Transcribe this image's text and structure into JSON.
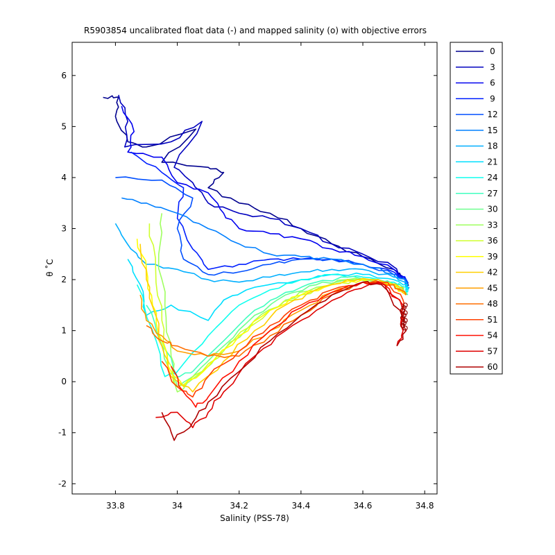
{
  "chart_data": {
    "type": "line",
    "title": "R5903854 uncalibrated float data (-) and mapped salinity (o) with objective errors",
    "xlabel": "Salinity (PSS-78)",
    "ylabel": "θ ˚C",
    "xlim": [
      33.66,
      34.84
    ],
    "ylim": [
      -2.2,
      6.65
    ],
    "xticks": [
      33.8,
      34,
      34.2,
      34.4,
      34.6,
      34.8
    ],
    "yticks": [
      -2,
      -1,
      0,
      1,
      2,
      3,
      4,
      5,
      6
    ],
    "grid": false,
    "legend_position": "outside-right",
    "series": [
      {
        "name": "0",
        "color": "#00008F",
        "points": [
          [
            33.76,
            5.57
          ],
          [
            33.81,
            5.58
          ],
          [
            33.8,
            5.2
          ],
          [
            33.84,
            4.7
          ],
          [
            33.9,
            4.6
          ],
          [
            34.06,
            4.95
          ],
          [
            33.95,
            4.3
          ],
          [
            34.1,
            4.2
          ],
          [
            34.15,
            4.1
          ],
          [
            34.1,
            3.8
          ],
          [
            34.2,
            3.5
          ],
          [
            34.3,
            3.3
          ],
          [
            34.4,
            3.0
          ],
          [
            34.5,
            2.7
          ],
          [
            34.6,
            2.45
          ],
          [
            34.7,
            2.2
          ],
          [
            34.74,
            2.0
          ],
          [
            34.745,
            1.8
          ]
        ]
      },
      {
        "name": "3",
        "color": "#0000BF",
        "points": [
          [
            33.81,
            5.62
          ],
          [
            33.84,
            5.1
          ],
          [
            33.83,
            4.6
          ],
          [
            33.98,
            4.7
          ],
          [
            34.08,
            5.1
          ],
          [
            33.99,
            4.2
          ],
          [
            34.05,
            3.9
          ],
          [
            34.1,
            3.5
          ],
          [
            34.2,
            3.3
          ],
          [
            34.3,
            3.2
          ],
          [
            34.4,
            3.0
          ],
          [
            34.5,
            2.7
          ],
          [
            34.6,
            2.5
          ],
          [
            34.7,
            2.25
          ],
          [
            34.74,
            2.0
          ],
          [
            34.745,
            1.8
          ]
        ]
      },
      {
        "name": "6",
        "color": "#0000EF",
        "points": [
          [
            33.82,
            5.4
          ],
          [
            33.86,
            4.9
          ],
          [
            33.84,
            4.5
          ],
          [
            33.95,
            4.4
          ],
          [
            34.0,
            3.9
          ],
          [
            34.1,
            3.7
          ],
          [
            34.15,
            3.3
          ],
          [
            34.2,
            3.0
          ],
          [
            34.3,
            2.9
          ],
          [
            34.4,
            2.8
          ],
          [
            34.5,
            2.6
          ],
          [
            34.6,
            2.45
          ],
          [
            34.7,
            2.2
          ],
          [
            34.74,
            2.0
          ],
          [
            34.745,
            1.8
          ]
        ]
      },
      {
        "name": "9",
        "color": "#001FFF",
        "points": [
          [
            33.85,
            4.5
          ],
          [
            33.95,
            4.1
          ],
          [
            34.02,
            3.8
          ],
          [
            34.0,
            3.2
          ],
          [
            34.05,
            2.6
          ],
          [
            34.1,
            2.2
          ],
          [
            34.2,
            2.3
          ],
          [
            34.3,
            2.4
          ],
          [
            34.4,
            2.4
          ],
          [
            34.5,
            2.4
          ],
          [
            34.6,
            2.3
          ],
          [
            34.7,
            2.15
          ],
          [
            34.74,
            2.0
          ],
          [
            34.745,
            1.8
          ]
        ]
      },
      {
        "name": "12",
        "color": "#004FFF",
        "points": [
          [
            33.8,
            4.0
          ],
          [
            33.95,
            3.95
          ],
          [
            34.05,
            3.6
          ],
          [
            34.0,
            3.0
          ],
          [
            34.02,
            2.4
          ],
          [
            34.1,
            2.1
          ],
          [
            34.2,
            2.15
          ],
          [
            34.3,
            2.3
          ],
          [
            34.4,
            2.4
          ],
          [
            34.5,
            2.4
          ],
          [
            34.6,
            2.3
          ],
          [
            34.7,
            2.1
          ],
          [
            34.74,
            2.0
          ],
          [
            34.745,
            1.8
          ]
        ]
      },
      {
        "name": "15",
        "color": "#007FFF",
        "points": [
          [
            33.82,
            3.6
          ],
          [
            33.9,
            3.5
          ],
          [
            34.0,
            3.3
          ],
          [
            34.1,
            3.0
          ],
          [
            34.2,
            2.7
          ],
          [
            34.3,
            2.5
          ],
          [
            34.4,
            2.45
          ],
          [
            34.5,
            2.4
          ],
          [
            34.6,
            2.3
          ],
          [
            34.7,
            2.1
          ],
          [
            34.74,
            1.95
          ],
          [
            34.745,
            1.8
          ]
        ]
      },
      {
        "name": "18",
        "color": "#00AFFF",
        "points": [
          [
            33.8,
            3.1
          ],
          [
            33.85,
            2.6
          ],
          [
            33.9,
            2.3
          ],
          [
            34.0,
            2.2
          ],
          [
            34.1,
            2.0
          ],
          [
            34.2,
            1.95
          ],
          [
            34.3,
            2.05
          ],
          [
            34.4,
            2.15
          ],
          [
            34.5,
            2.2
          ],
          [
            34.6,
            2.2
          ],
          [
            34.7,
            2.05
          ],
          [
            34.74,
            1.95
          ],
          [
            34.745,
            1.8
          ]
        ]
      },
      {
        "name": "21",
        "color": "#00DFFF",
        "points": [
          [
            33.84,
            2.4
          ],
          [
            33.88,
            1.9
          ],
          [
            33.9,
            1.3
          ],
          [
            33.98,
            1.5
          ],
          [
            34.1,
            1.2
          ],
          [
            34.15,
            1.6
          ],
          [
            34.25,
            1.85
          ],
          [
            34.4,
            2.0
          ],
          [
            34.5,
            2.1
          ],
          [
            34.6,
            2.1
          ],
          [
            34.7,
            2.0
          ],
          [
            34.74,
            1.9
          ],
          [
            34.745,
            1.75
          ]
        ]
      },
      {
        "name": "24",
        "color": "#0FFFEF",
        "points": [
          [
            33.87,
            1.9
          ],
          [
            33.92,
            1.0
          ],
          [
            33.96,
            0.1
          ],
          [
            34.0,
            0.2
          ],
          [
            34.1,
            0.9
          ],
          [
            34.2,
            1.5
          ],
          [
            34.3,
            1.8
          ],
          [
            34.4,
            2.0
          ],
          [
            34.5,
            2.1
          ],
          [
            34.6,
            2.05
          ],
          [
            34.7,
            1.95
          ],
          [
            34.74,
            1.85
          ],
          [
            34.745,
            1.7
          ]
        ]
      },
      {
        "name": "27",
        "color": "#3FFFBF",
        "points": [
          [
            33.9,
            1.5
          ],
          [
            33.95,
            0.8
          ],
          [
            34.0,
            0.1
          ],
          [
            34.05,
            0.2
          ],
          [
            34.15,
            0.8
          ],
          [
            34.25,
            1.4
          ],
          [
            34.35,
            1.75
          ],
          [
            34.45,
            1.95
          ],
          [
            34.55,
            2.05
          ],
          [
            34.65,
            2.0
          ],
          [
            34.72,
            1.9
          ],
          [
            34.745,
            1.7
          ]
        ]
      },
      {
        "name": "30",
        "color": "#6FFF8F",
        "points": [
          [
            33.93,
            1.0
          ],
          [
            33.97,
            0.3
          ],
          [
            34.0,
            -0.1
          ],
          [
            34.05,
            0.1
          ],
          [
            34.15,
            0.7
          ],
          [
            34.25,
            1.3
          ],
          [
            34.35,
            1.7
          ],
          [
            34.45,
            1.9
          ],
          [
            34.55,
            2.0
          ],
          [
            34.65,
            2.0
          ],
          [
            34.72,
            1.85
          ],
          [
            34.74,
            1.7
          ]
        ]
      },
      {
        "name": "33",
        "color": "#9FFF5F",
        "points": [
          [
            33.95,
            3.3
          ],
          [
            33.94,
            2.5
          ],
          [
            33.96,
            1.5
          ],
          [
            33.98,
            0.5
          ],
          [
            34.0,
            -0.2
          ],
          [
            34.06,
            0.1
          ],
          [
            34.15,
            0.6
          ],
          [
            34.25,
            1.2
          ],
          [
            34.35,
            1.6
          ],
          [
            34.45,
            1.85
          ],
          [
            34.55,
            2.0
          ],
          [
            34.65,
            2.0
          ],
          [
            34.72,
            1.85
          ],
          [
            34.74,
            1.7
          ]
        ]
      },
      {
        "name": "36",
        "color": "#CFFF2F",
        "points": [
          [
            33.91,
            3.1
          ],
          [
            33.93,
            2.2
          ],
          [
            33.95,
            1.2
          ],
          [
            33.97,
            0.4
          ],
          [
            34.0,
            -0.1
          ],
          [
            34.08,
            0.2
          ],
          [
            34.18,
            0.8
          ],
          [
            34.3,
            1.4
          ],
          [
            34.4,
            1.7
          ],
          [
            34.5,
            1.9
          ],
          [
            34.6,
            2.0
          ],
          [
            34.7,
            1.9
          ],
          [
            34.74,
            1.7
          ]
        ]
      },
      {
        "name": "39",
        "color": "#FFFF00",
        "points": [
          [
            33.87,
            2.8
          ],
          [
            33.9,
            2.2
          ],
          [
            33.92,
            1.5
          ],
          [
            33.95,
            0.8
          ],
          [
            33.98,
            0.2
          ],
          [
            34.02,
            -0.1
          ],
          [
            34.1,
            0.3
          ],
          [
            34.2,
            0.9
          ],
          [
            34.3,
            1.4
          ],
          [
            34.4,
            1.7
          ],
          [
            34.5,
            1.9
          ],
          [
            34.6,
            2.0
          ],
          [
            34.7,
            1.9
          ],
          [
            34.74,
            1.7
          ]
        ]
      },
      {
        "name": "42",
        "color": "#FFCF00",
        "points": [
          [
            33.88,
            2.7
          ],
          [
            33.9,
            2.0
          ],
          [
            33.93,
            1.3
          ],
          [
            33.95,
            0.7
          ],
          [
            33.98,
            0.1
          ],
          [
            34.05,
            -0.2
          ],
          [
            34.15,
            0.4
          ],
          [
            34.25,
            1.0
          ],
          [
            34.35,
            1.5
          ],
          [
            34.45,
            1.8
          ],
          [
            34.55,
            2.0
          ],
          [
            34.65,
            2.0
          ],
          [
            34.72,
            1.85
          ],
          [
            34.74,
            1.7
          ]
        ]
      },
      {
        "name": "45",
        "color": "#FF9F00",
        "points": [
          [
            33.88,
            1.7
          ],
          [
            33.9,
            1.2
          ],
          [
            33.95,
            0.9
          ],
          [
            34.0,
            0.6
          ],
          [
            34.1,
            0.5
          ],
          [
            34.2,
            0.6
          ],
          [
            34.3,
            1.0
          ],
          [
            34.4,
            1.4
          ],
          [
            34.5,
            1.75
          ],
          [
            34.6,
            1.95
          ],
          [
            34.7,
            1.9
          ],
          [
            34.74,
            1.7
          ]
        ]
      },
      {
        "name": "48",
        "color": "#FF6F00",
        "points": [
          [
            33.9,
            1.1
          ],
          [
            33.95,
            0.8
          ],
          [
            34.0,
            0.7
          ],
          [
            34.1,
            0.5
          ],
          [
            34.2,
            0.5
          ],
          [
            34.3,
            0.9
          ],
          [
            34.4,
            1.3
          ],
          [
            34.5,
            1.7
          ],
          [
            34.6,
            1.95
          ],
          [
            34.7,
            1.9
          ],
          [
            34.74,
            1.7
          ]
        ]
      },
      {
        "name": "51",
        "color": "#FF3F00",
        "points": [
          [
            33.95,
            0.4
          ],
          [
            34.0,
            -0.1
          ],
          [
            34.05,
            -0.3
          ],
          [
            34.1,
            0.1
          ],
          [
            34.2,
            0.6
          ],
          [
            34.3,
            1.1
          ],
          [
            34.4,
            1.5
          ],
          [
            34.5,
            1.8
          ],
          [
            34.6,
            1.95
          ],
          [
            34.68,
            1.95
          ],
          [
            34.73,
            1.6
          ],
          [
            34.73,
            1.2
          ]
        ]
      },
      {
        "name": "54",
        "color": "#FF0F00",
        "points": [
          [
            33.98,
            0.3
          ],
          [
            34.02,
            -0.2
          ],
          [
            34.06,
            -0.5
          ],
          [
            34.1,
            -0.3
          ],
          [
            34.2,
            0.4
          ],
          [
            34.3,
            1.0
          ],
          [
            34.4,
            1.45
          ],
          [
            34.5,
            1.75
          ],
          [
            34.6,
            1.95
          ],
          [
            34.67,
            1.9
          ],
          [
            34.73,
            1.5
          ],
          [
            34.73,
            1.0
          ]
        ]
      },
      {
        "name": "57",
        "color": "#DF0000",
        "points": [
          [
            33.93,
            -0.7
          ],
          [
            34.0,
            -0.6
          ],
          [
            34.05,
            -0.9
          ],
          [
            34.1,
            -0.6
          ],
          [
            34.15,
            -0.2
          ],
          [
            34.25,
            0.5
          ],
          [
            34.35,
            1.0
          ],
          [
            34.45,
            1.4
          ],
          [
            34.55,
            1.75
          ],
          [
            34.65,
            1.95
          ],
          [
            34.72,
            1.6
          ],
          [
            34.73,
            1.0
          ],
          [
            34.71,
            0.7
          ]
        ]
      },
      {
        "name": "60",
        "color": "#AF0000",
        "points": [
          [
            33.95,
            -0.6
          ],
          [
            33.99,
            -1.15
          ],
          [
            34.05,
            -0.8
          ],
          [
            34.1,
            -0.4
          ],
          [
            34.2,
            0.2
          ],
          [
            34.3,
            0.8
          ],
          [
            34.4,
            1.3
          ],
          [
            34.5,
            1.7
          ],
          [
            34.6,
            1.95
          ],
          [
            34.66,
            1.9
          ],
          [
            34.72,
            1.4
          ],
          [
            34.74,
            1.0
          ],
          [
            34.71,
            0.7
          ]
        ]
      }
    ]
  }
}
